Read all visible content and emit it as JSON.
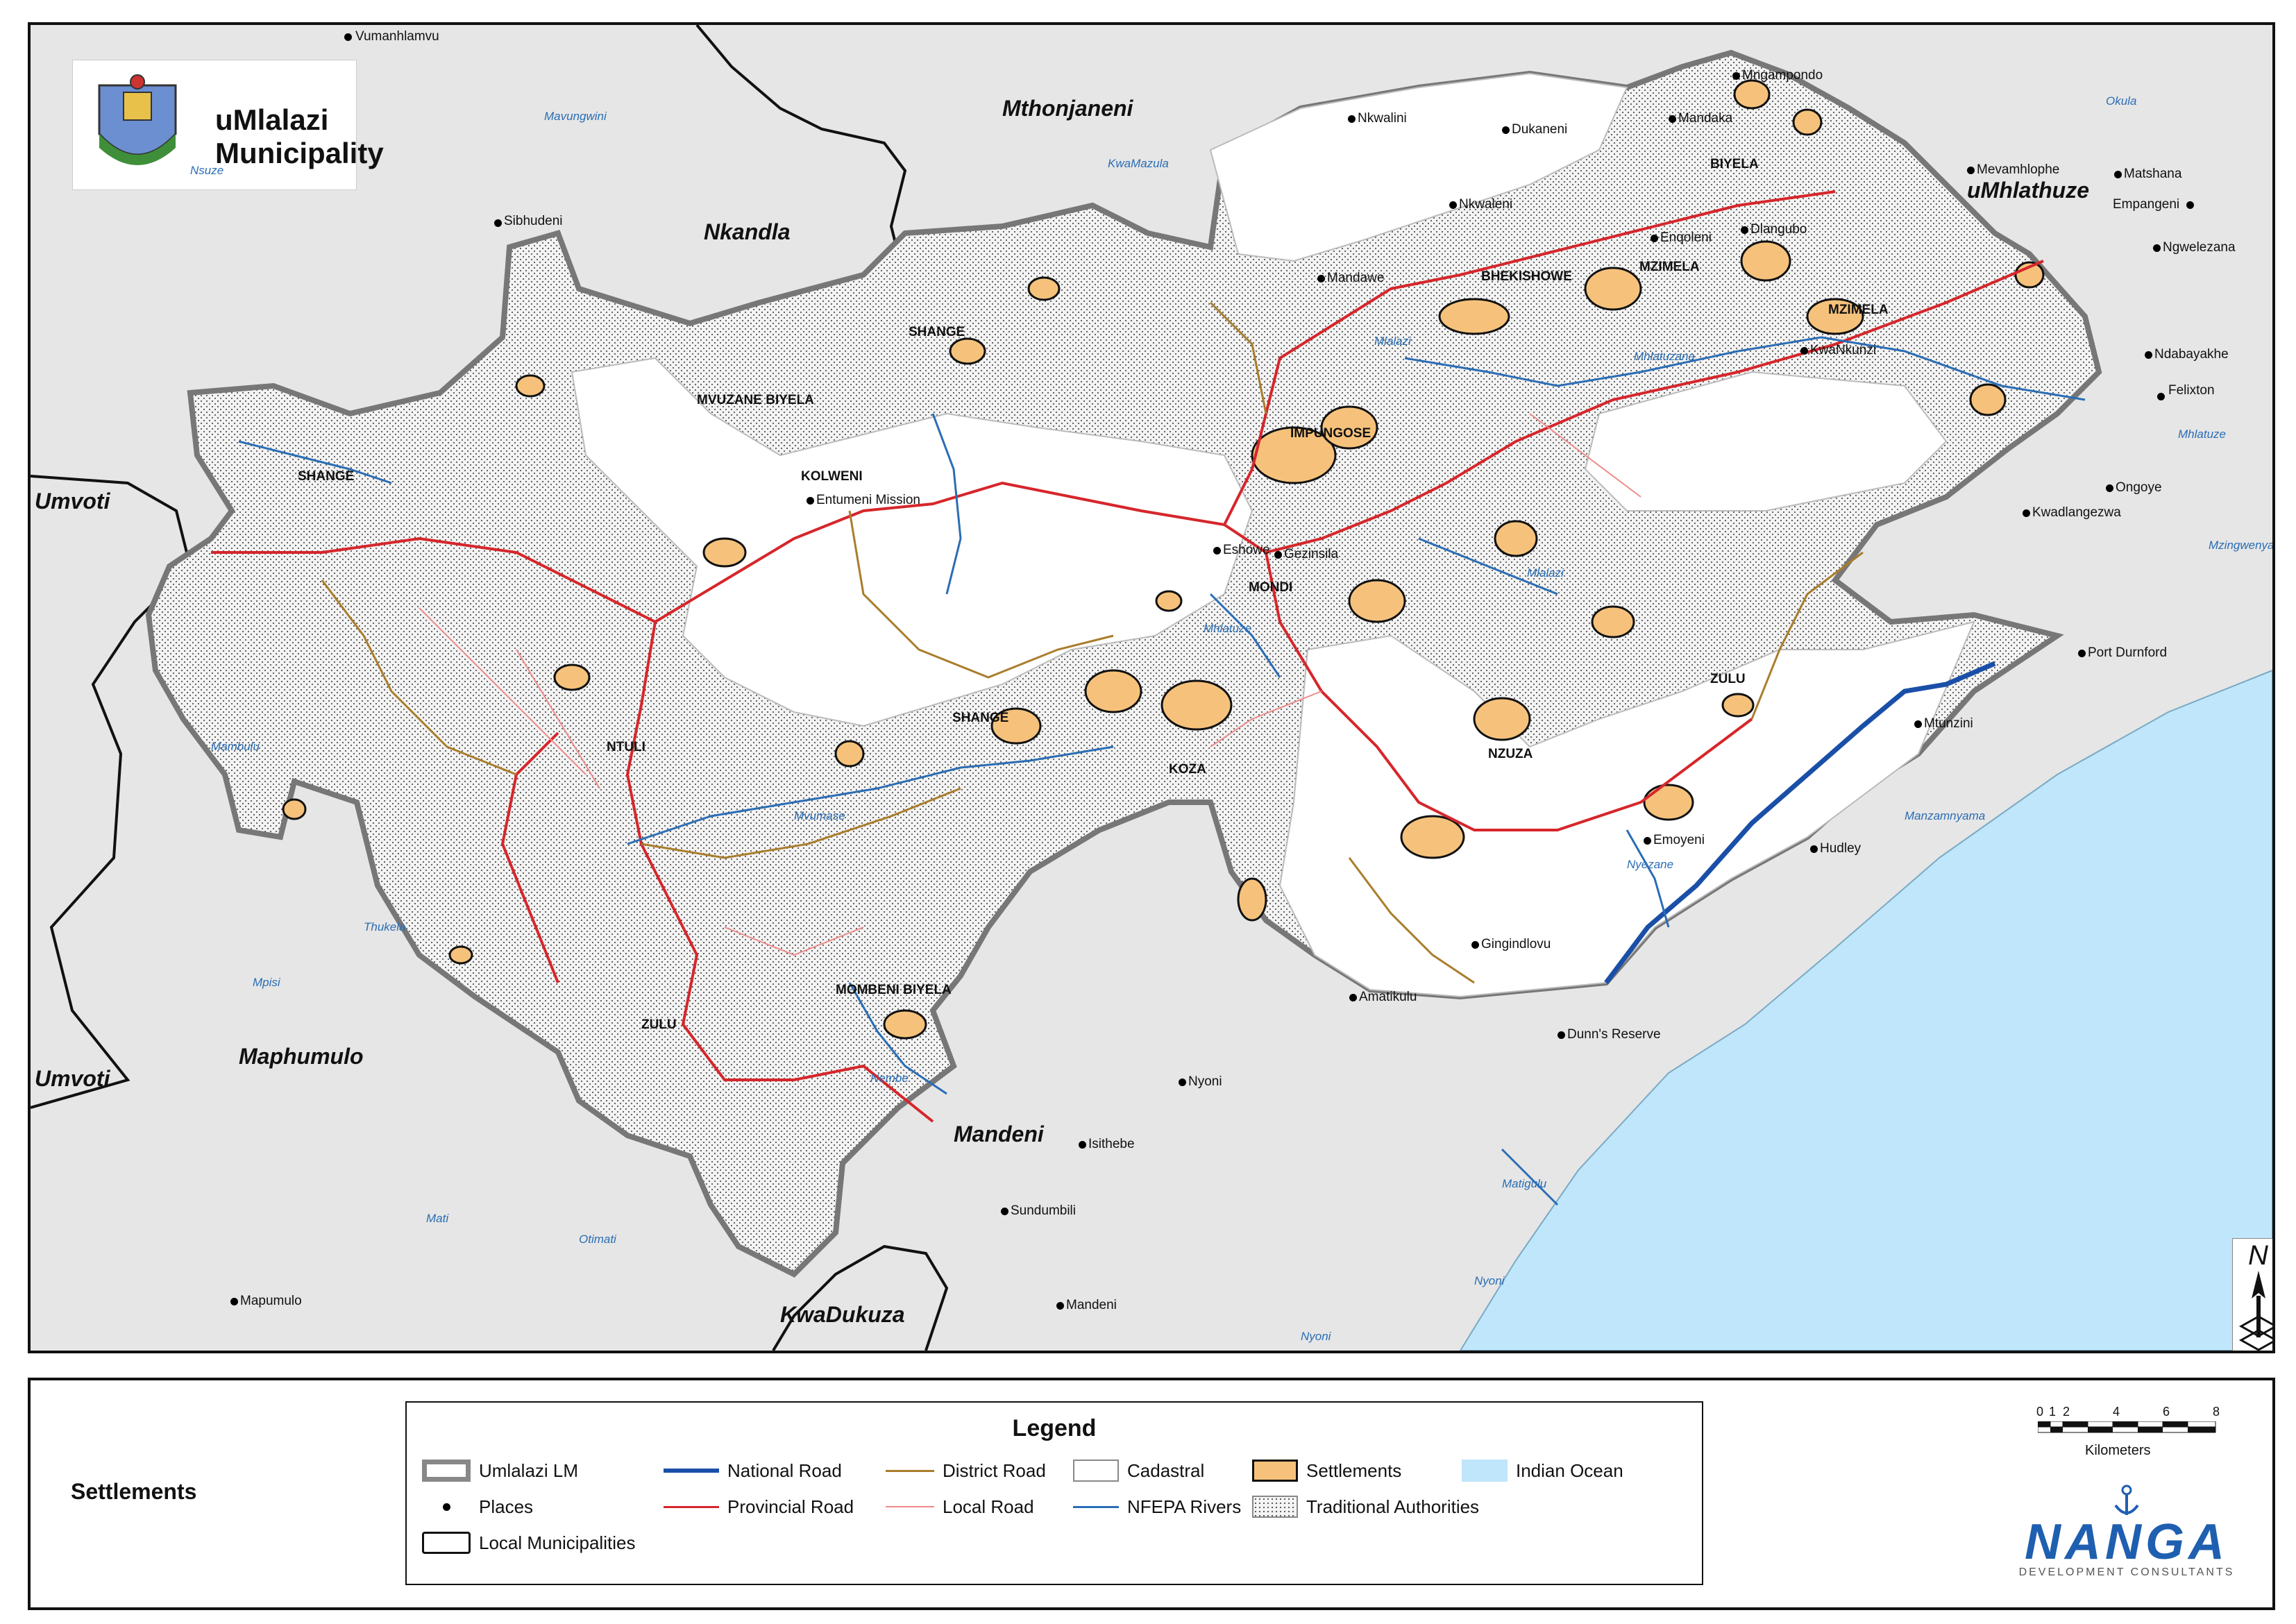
{
  "title": "uMlalazi Municipality",
  "panel_title": "Settlements",
  "legend": {
    "title": "Legend",
    "items": [
      {
        "key": "umlalazi",
        "label": "Umlalazi LM"
      },
      {
        "key": "national",
        "label": "National Road"
      },
      {
        "key": "district",
        "label": "District Road"
      },
      {
        "key": "cadastral",
        "label": "Cadastral"
      },
      {
        "key": "settlements",
        "label": "Settlements"
      },
      {
        "key": "ocean",
        "label": "Indian Ocean"
      },
      {
        "key": "places",
        "label": "Places"
      },
      {
        "key": "provincial",
        "label": "Provincial Road"
      },
      {
        "key": "local",
        "label": "Local Road"
      },
      {
        "key": "rivers",
        "label": "NFEPA Rivers"
      },
      {
        "key": "ta",
        "label": "Traditional Authorities"
      },
      {
        "key": "localmuni",
        "label": "Local Municipalities"
      }
    ]
  },
  "colors": {
    "settlement": "#f6c27b",
    "ocean": "#bfe6fa",
    "national_road": "#1a4fa8",
    "provincial_road": "#d6262b",
    "district_road": "#a97d2b",
    "local_road": "#f08a8a",
    "river": "#2a6db5",
    "background": "#e6e6e6"
  },
  "scale": {
    "ticks": [
      "0",
      "1",
      "2",
      "4",
      "6",
      "8"
    ],
    "units": "Kilometers"
  },
  "north_label": "N",
  "company": {
    "name": "NANGA",
    "subtitle": "DEVELOPMENT CONSULTANTS"
  },
  "municipalities": [
    "Mthonjaneni",
    "Nkandla",
    "uMhlathuze",
    "Umvoti",
    "Umvoti",
    "Maphumulo",
    "Mandeni",
    "KwaDukuza"
  ],
  "traditional_authorities": [
    "SHANGE",
    "MVUZANE BIYELA",
    "SHANGE",
    "KOLWENI",
    "BIYELA",
    "BHEKISHOWE",
    "MZIMELA",
    "MZIMELA",
    "IMPUNGOSE",
    "MONDI",
    "SHANGE",
    "KOZA",
    "NTULI",
    "NZUZA",
    "ZULU",
    "MOMBENI BIYELA",
    "ZULU"
  ],
  "places": [
    "Vumanhlamvu",
    "Sibhudeni",
    "Nkwalini",
    "Dukaneni",
    "Nkwaleni",
    "Mandaka",
    "Mngampondo",
    "Enqoleni",
    "Dlangubo",
    "Mandawe",
    "Mevamhlophe",
    "Matshana",
    "Empangeni",
    "Ngwelezana",
    "KwaNkunzi",
    "Ndabayakhe",
    "Felixton",
    "Ongoye",
    "Kwadlangezwa",
    "Entumeni Mission",
    "Eshowe",
    "Gezinsila",
    "Port Durnford",
    "Mtunzini",
    "Emoyeni",
    "Hudley",
    "Gingindlovu",
    "Amatikulu",
    "Dunn's Reserve",
    "Nyoni",
    "Isithebe",
    "Sundumbili",
    "Mandeni",
    "Mapumulo"
  ],
  "rivers": [
    "Mavungwini",
    "Nsuze",
    "KwaMazula",
    "Okula",
    "Mlalazi",
    "Mhlatuzana",
    "Mhlatuze",
    "Mzingwenya",
    "Mlalazi",
    "Mhlatuze",
    "Mambulu",
    "Thukela",
    "Mvumase",
    "Mpisi",
    "Nembe",
    "Manzamnyama",
    "Nyezane",
    "Matigulu",
    "Mati",
    "Otimati",
    "Nyoni",
    "Nyoni"
  ]
}
